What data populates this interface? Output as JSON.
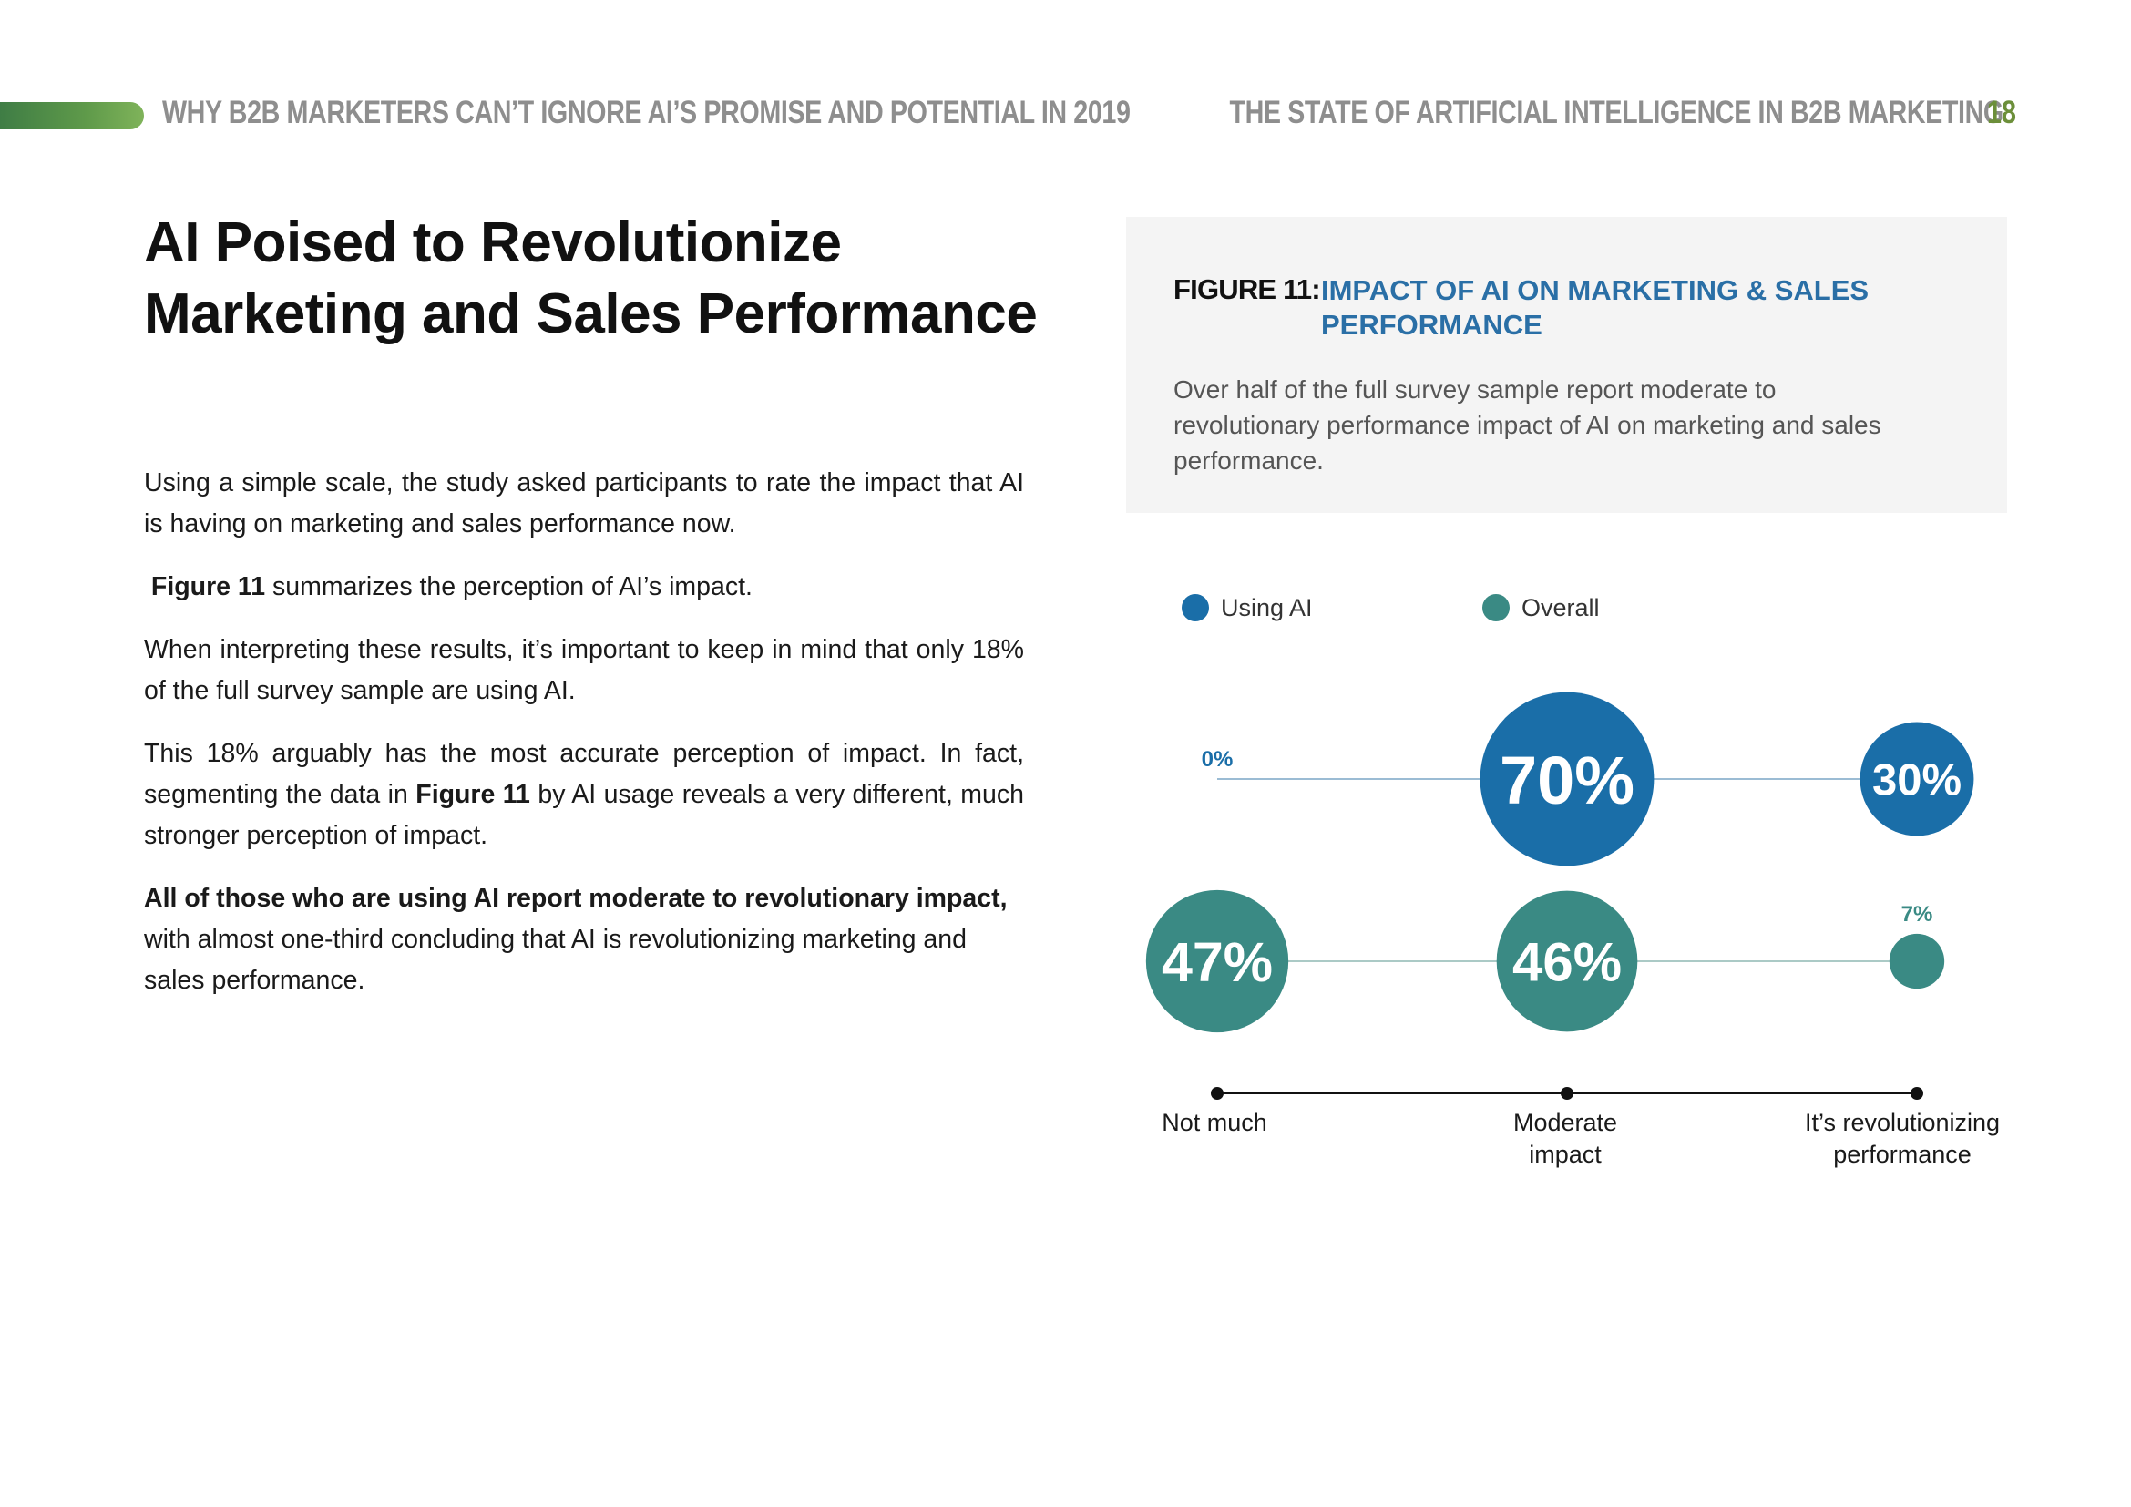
{
  "header": {
    "left": "WHY B2B MARKETERS CAN’T IGNORE AI’S PROMISE AND POTENTIAL IN 2019",
    "right": "THE STATE OF ARTIFICIAL INTELLIGENCE IN B2B MARKETING",
    "page_number": "18"
  },
  "title_line1": "AI Poised to Revolutionize",
  "title_line2": "Marketing and Sales Performance",
  "body": {
    "p1": "Using a simple scale, the study asked participants to rate the impact that AI is having on marketing and sales performance now.",
    "p2_bold": "Figure 11",
    "p2_rest": " summarizes the perception of AI’s impact.",
    "p3": "When interpreting these results, it’s important to keep in mind that only 18% of the full survey sample are using AI.",
    "p4_a": "This 18% arguably has the most accurate perception of impact. In fact, segmenting the data in ",
    "p4_bold": "Figure 11",
    "p4_b": " by AI usage reveals a very different, much stronger perception of impact.",
    "p5_bold": "All of those who are using AI report moderate to revolutionary impact,",
    "p5_rest": " with almost one-third concluding that AI is revolutionizing marketing and sales performance."
  },
  "figure": {
    "label": "FIGURE 11:",
    "title": "IMPACT OF AI ON MARKETING & SALES PERFORMANCE",
    "description": "Over half of the full survey sample report moderate to revolutionary performance impact of AI on marketing and sales performance."
  },
  "colors": {
    "using_ai": "#1a6ea8",
    "overall": "#3a8a84",
    "accent_green": "#6c8f3a"
  },
  "chart_data": {
    "type": "scatter",
    "title": "IMPACT OF AI ON MARKETING & SALES PERFORMANCE",
    "categories": [
      "Not much",
      "Moderate impact",
      "It’s revolutionizing performance"
    ],
    "category_lines": [
      [
        "Not much"
      ],
      [
        "Moderate",
        "impact"
      ],
      [
        "It’s revolutionizing",
        "performance"
      ]
    ],
    "series": [
      {
        "name": "Using AI",
        "values": [
          0,
          70,
          30
        ],
        "labels": [
          "0%",
          "70%",
          "30%"
        ]
      },
      {
        "name": "Overall",
        "values": [
          47,
          46,
          7
        ],
        "labels": [
          "47%",
          "46%",
          "7%"
        ]
      }
    ],
    "unit": "%"
  }
}
